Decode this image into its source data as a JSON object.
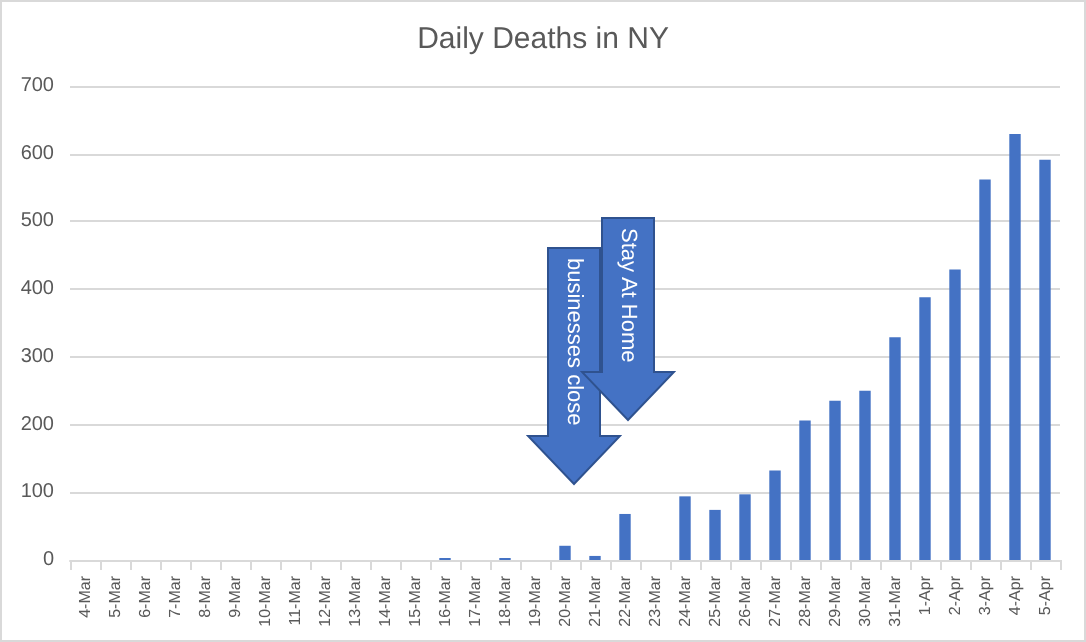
{
  "chart_data": {
    "type": "bar",
    "title": "Daily Deaths in NY",
    "categories": [
      "4-Mar",
      "5-Mar",
      "6-Mar",
      "7-Mar",
      "8-Mar",
      "9-Mar",
      "10-Mar",
      "11-Mar",
      "12-Mar",
      "13-Mar",
      "14-Mar",
      "15-Mar",
      "16-Mar",
      "17-Mar",
      "18-Mar",
      "19-Mar",
      "20-Mar",
      "21-Mar",
      "22-Mar",
      "23-Mar",
      "24-Mar",
      "25-Mar",
      "26-Mar",
      "27-Mar",
      "28-Mar",
      "29-Mar",
      "30-Mar",
      "31-Mar",
      "1-Apr",
      "2-Apr",
      "3-Apr",
      "4-Apr",
      "5-Apr"
    ],
    "values": [
      0,
      0,
      0,
      0,
      0,
      0,
      0,
      0,
      0,
      0,
      0,
      0,
      3,
      0,
      3,
      0,
      21,
      6,
      68,
      0,
      94,
      74,
      97,
      132,
      206,
      235,
      250,
      329,
      388,
      429,
      562,
      629,
      591
    ],
    "color": "#4472c4",
    "ylim": [
      0,
      700
    ],
    "yticks": [
      0,
      100,
      200,
      300,
      400,
      500,
      600,
      700
    ],
    "grid": "y",
    "annotations": [
      "businesses close",
      "Stay At Home"
    ]
  }
}
